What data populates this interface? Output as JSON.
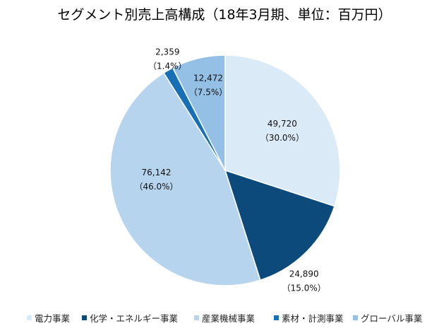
{
  "chart_data": {
    "type": "pie",
    "title": "セグメント別売上高構成（18年3月期、単位：百万円）",
    "categories": [
      "電力事業",
      "化学・エネルギー事業",
      "産業機械事業",
      "素材・計測事業",
      "グローバル事業"
    ],
    "values": [
      49720,
      24890,
      76142,
      2359,
      12472
    ],
    "value_labels": [
      "49,720",
      "24,890",
      "76,142",
      "2,359",
      "12,472"
    ],
    "percent_labels": [
      "（30.0%）",
      "（15.0%）",
      "（46.0%）",
      "（1.4%）",
      "（7.5%）"
    ],
    "colors": [
      "#dbeaf7",
      "#0b4a7a",
      "#b7d4ee",
      "#1770b5",
      "#94c0e6"
    ],
    "legend_position": "bottom",
    "start_angle_deg": 0,
    "direction": "clockwise"
  }
}
